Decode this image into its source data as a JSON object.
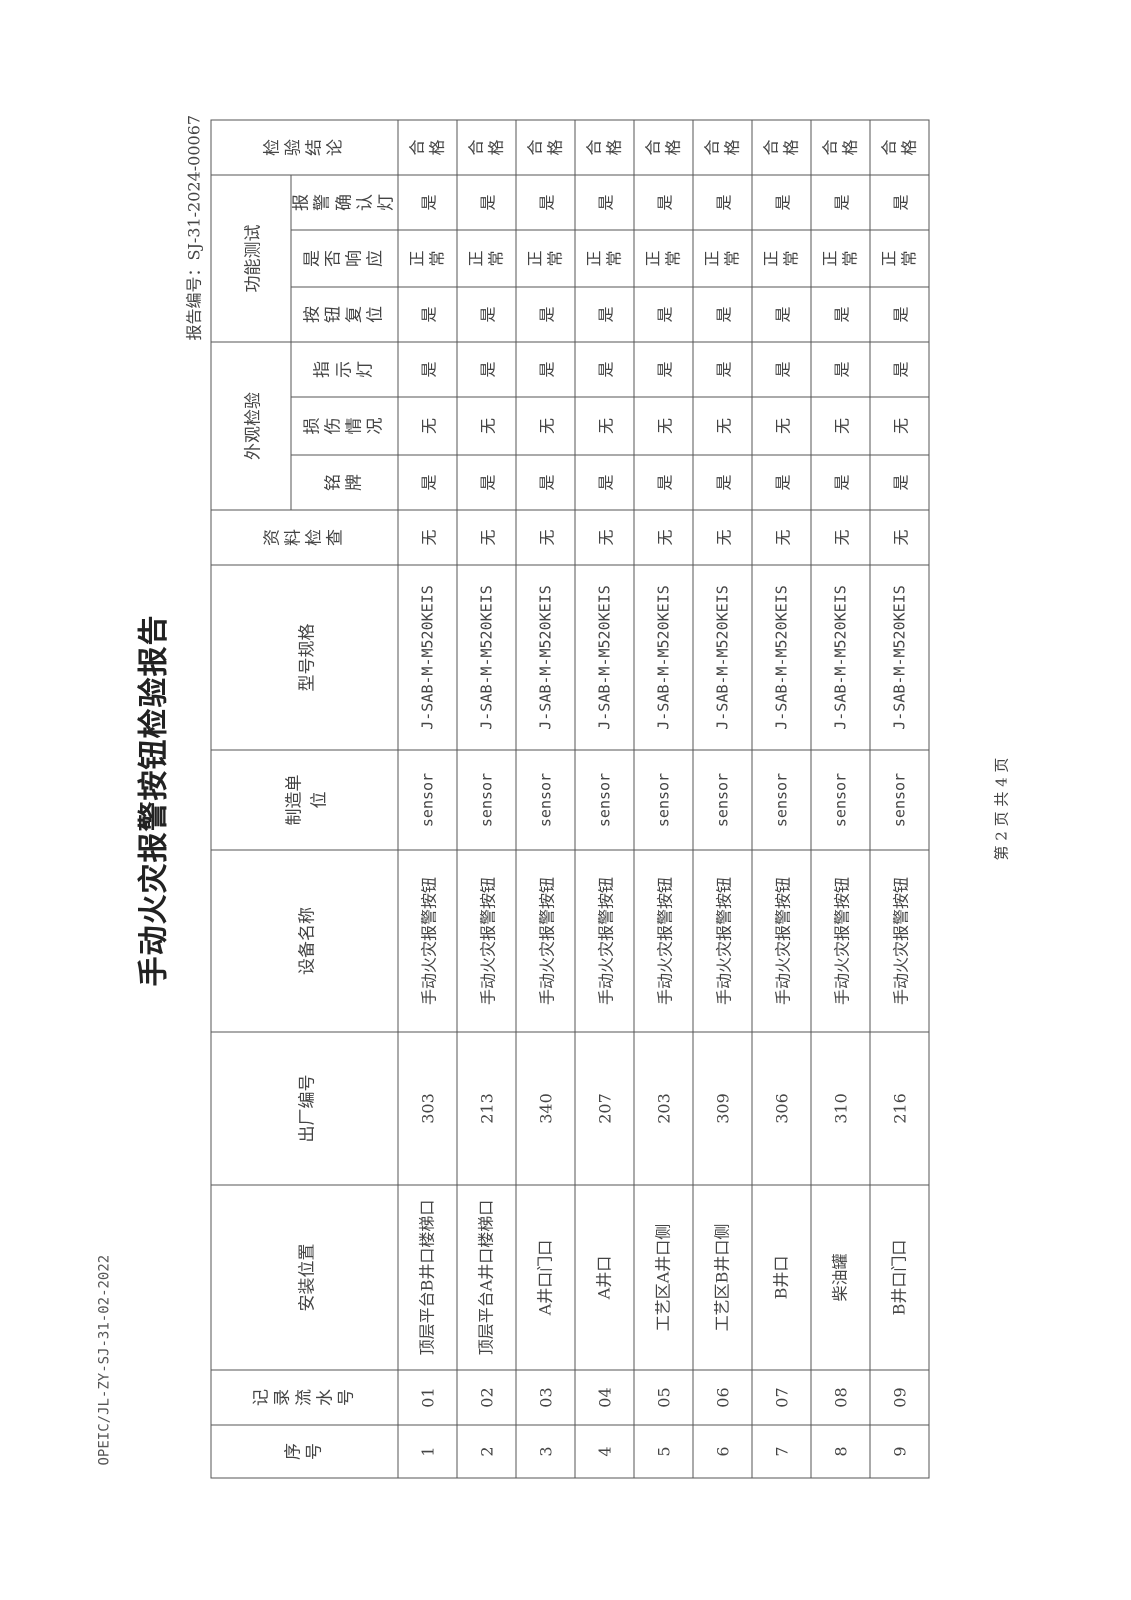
{
  "doc_code": "OPEIC/JL-ZY-SJ-31-02-2022",
  "title": "手动火灾报警按钮检验报告",
  "report_no": "报告编号：SJ-31-2024-00067",
  "footer": "第 2 页 共 4 页",
  "headers": {
    "seq": "序号",
    "record": "记录流水号",
    "location": "安装位置",
    "serial": "出厂编号",
    "name": "设备名称",
    "maker": "制造单位",
    "model": "型号规格",
    "docs": "资料检查",
    "appearance": "外观检验",
    "nameplate": "铭牌",
    "damage": "损伤情况",
    "indicator": "指示灯",
    "function": "功能测试",
    "reset": "按钮复位",
    "response": "是否响应",
    "confirm": "报警确认灯",
    "conclusion": "检验结论"
  },
  "rows": [
    {
      "seq": "1",
      "record": "01",
      "location": "顶层平台B井口楼梯口",
      "serial": "303",
      "name": "手动火灾报警按钮",
      "maker": "sensor",
      "model": "J-SAB-M-M520KEIS",
      "docs": "无",
      "nameplate": "是",
      "damage": "无",
      "indicator": "是",
      "reset": "是",
      "response": "正常",
      "confirm": "是",
      "conclusion": "合格"
    },
    {
      "seq": "2",
      "record": "02",
      "location": "顶层平台A井口楼梯口",
      "serial": "213",
      "name": "手动火灾报警按钮",
      "maker": "sensor",
      "model": "J-SAB-M-M520KEIS",
      "docs": "无",
      "nameplate": "是",
      "damage": "无",
      "indicator": "是",
      "reset": "是",
      "response": "正常",
      "confirm": "是",
      "conclusion": "合格"
    },
    {
      "seq": "3",
      "record": "03",
      "location": "A井口门口",
      "serial": "340",
      "name": "手动火灾报警按钮",
      "maker": "sensor",
      "model": "J-SAB-M-M520KEIS",
      "docs": "无",
      "nameplate": "是",
      "damage": "无",
      "indicator": "是",
      "reset": "是",
      "response": "正常",
      "confirm": "是",
      "conclusion": "合格"
    },
    {
      "seq": "4",
      "record": "04",
      "location": "A井口",
      "serial": "207",
      "name": "手动火灾报警按钮",
      "maker": "sensor",
      "model": "J-SAB-M-M520KEIS",
      "docs": "无",
      "nameplate": "是",
      "damage": "无",
      "indicator": "是",
      "reset": "是",
      "response": "正常",
      "confirm": "是",
      "conclusion": "合格"
    },
    {
      "seq": "5",
      "record": "05",
      "location": "工艺区A井口侧",
      "serial": "203",
      "name": "手动火灾报警按钮",
      "maker": "sensor",
      "model": "J-SAB-M-M520KEIS",
      "docs": "无",
      "nameplate": "是",
      "damage": "无",
      "indicator": "是",
      "reset": "是",
      "response": "正常",
      "confirm": "是",
      "conclusion": "合格"
    },
    {
      "seq": "6",
      "record": "06",
      "location": "工艺区B井口侧",
      "serial": "309",
      "name": "手动火灾报警按钮",
      "maker": "sensor",
      "model": "J-SAB-M-M520KEIS",
      "docs": "无",
      "nameplate": "是",
      "damage": "无",
      "indicator": "是",
      "reset": "是",
      "response": "正常",
      "confirm": "是",
      "conclusion": "合格"
    },
    {
      "seq": "7",
      "record": "07",
      "location": "B井口",
      "serial": "306",
      "name": "手动火灾报警按钮",
      "maker": "sensor",
      "model": "J-SAB-M-M520KEIS",
      "docs": "无",
      "nameplate": "是",
      "damage": "无",
      "indicator": "是",
      "reset": "是",
      "response": "正常",
      "confirm": "是",
      "conclusion": "合格"
    },
    {
      "seq": "8",
      "record": "08",
      "location": "柴油罐",
      "serial": "310",
      "name": "手动火灾报警按钮",
      "maker": "sensor",
      "model": "J-SAB-M-M520KEIS",
      "docs": "无",
      "nameplate": "是",
      "damage": "无",
      "indicator": "是",
      "reset": "是",
      "response": "正常",
      "confirm": "是",
      "conclusion": "合格"
    },
    {
      "seq": "9",
      "record": "09",
      "location": "B井口门口",
      "serial": "216",
      "name": "手动火灾报警按钮",
      "maker": "sensor",
      "model": "J-SAB-M-M520KEIS",
      "docs": "无",
      "nameplate": "是",
      "damage": "无",
      "indicator": "是",
      "reset": "是",
      "response": "正常",
      "confirm": "是",
      "conclusion": "合格"
    }
  ]
}
